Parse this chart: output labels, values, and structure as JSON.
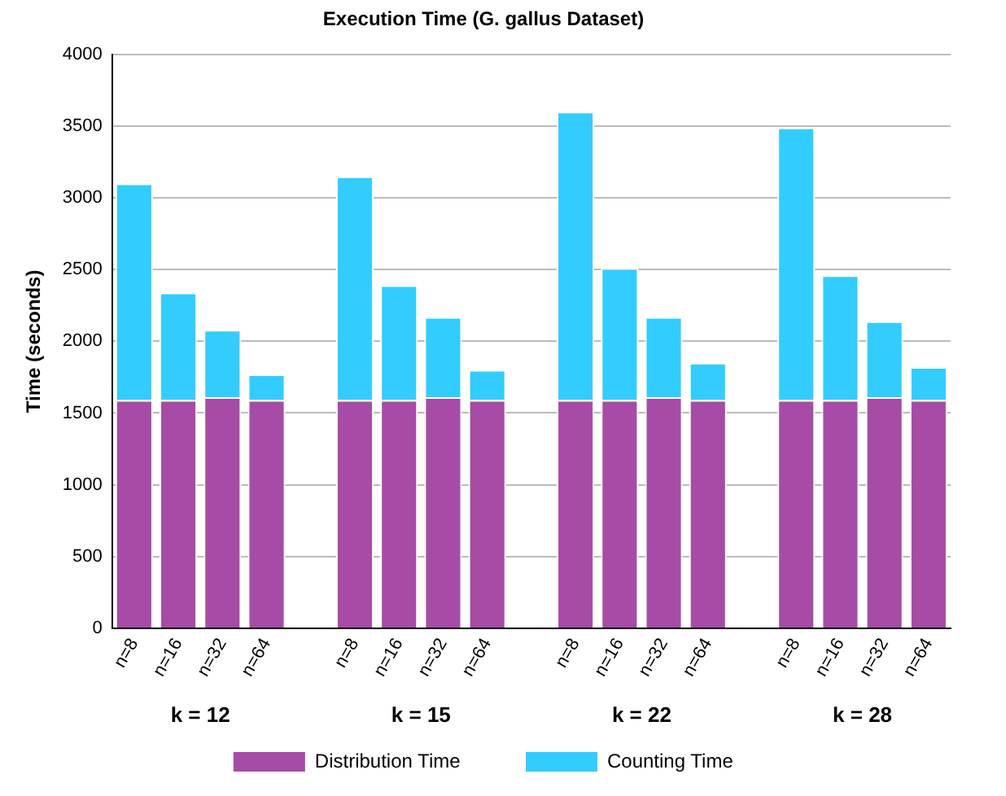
{
  "chart_data": {
    "type": "bar",
    "title": "Execution Time (G. gallus Dataset)",
    "ylabel": "Time (seconds)",
    "categories": [
      "n=8",
      "n=16",
      "n=32",
      "n=64",
      null,
      "n=8",
      "n=16",
      "n=32",
      "n=64",
      null,
      "n=8",
      "n=16",
      "n=32",
      "n=64",
      null,
      "n=8",
      "n=16",
      "n=32",
      "n=64"
    ],
    "series": [
      {
        "name": "Distribution Time",
        "color": "#a64ca6",
        "values": [
          1590,
          1590,
          1610,
          1590,
          null,
          1590,
          1590,
          1610,
          1590,
          null,
          1590,
          1590,
          1610,
          1590,
          null,
          1590,
          1590,
          1610,
          1590
        ]
      },
      {
        "name": "Counting Time",
        "color": "#33ccff",
        "values": [
          1510,
          750,
          470,
          180,
          null,
          1560,
          800,
          560,
          210,
          null,
          2010,
          920,
          560,
          260,
          null,
          1900,
          870,
          530,
          230
        ]
      }
    ],
    "annotations": [
      "k = 12",
      "k = 15",
      "k = 22",
      "k = 28"
    ],
    "stacked": true,
    "ylim": [
      0,
      4000
    ],
    "yticks": [
      0,
      500,
      1000,
      1500,
      2000,
      2500,
      3000,
      3500,
      4000
    ],
    "grid": "y",
    "legend": "bottom"
  }
}
